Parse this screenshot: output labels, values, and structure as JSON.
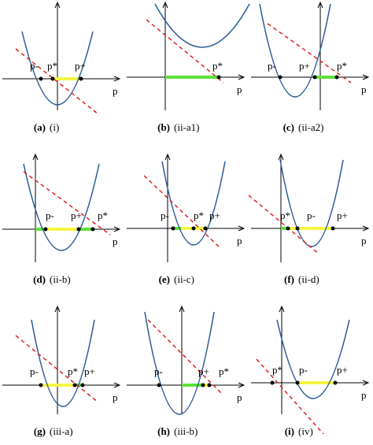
{
  "panels": [
    {
      "letter": "(a)",
      "case": "(i)",
      "axis": "p",
      "points": [
        "p-",
        "p*",
        "p+"
      ]
    },
    {
      "letter": "(b)",
      "case": "(ii-a1)",
      "axis": "p",
      "points": [
        "p*"
      ]
    },
    {
      "letter": "(c)",
      "case": "(ii-a2)",
      "axis": "p",
      "points": [
        "p-",
        "p+",
        "p*"
      ]
    },
    {
      "letter": "(d)",
      "case": "(ii-b)",
      "axis": "p",
      "points": [
        "p-",
        "p+",
        "p*"
      ]
    },
    {
      "letter": "(e)",
      "case": "(ii-c)",
      "axis": "p",
      "points": [
        "p-",
        "p*",
        "p+"
      ]
    },
    {
      "letter": "(f)",
      "case": "(ii-d)",
      "axis": "p",
      "points": [
        "p*",
        "p-",
        "p+"
      ]
    },
    {
      "letter": "(g)",
      "case": "(iii-a)",
      "axis": "p",
      "points": [
        "p-",
        "p*",
        "p+"
      ]
    },
    {
      "letter": "(h)",
      "case": "(iii-b)",
      "axis": "p",
      "points": [
        "p-",
        "p+",
        "p*"
      ]
    },
    {
      "letter": "(i)",
      "case": "(iv)",
      "axis": "p",
      "points": [
        "p*",
        "p-",
        "p+"
      ]
    }
  ]
}
